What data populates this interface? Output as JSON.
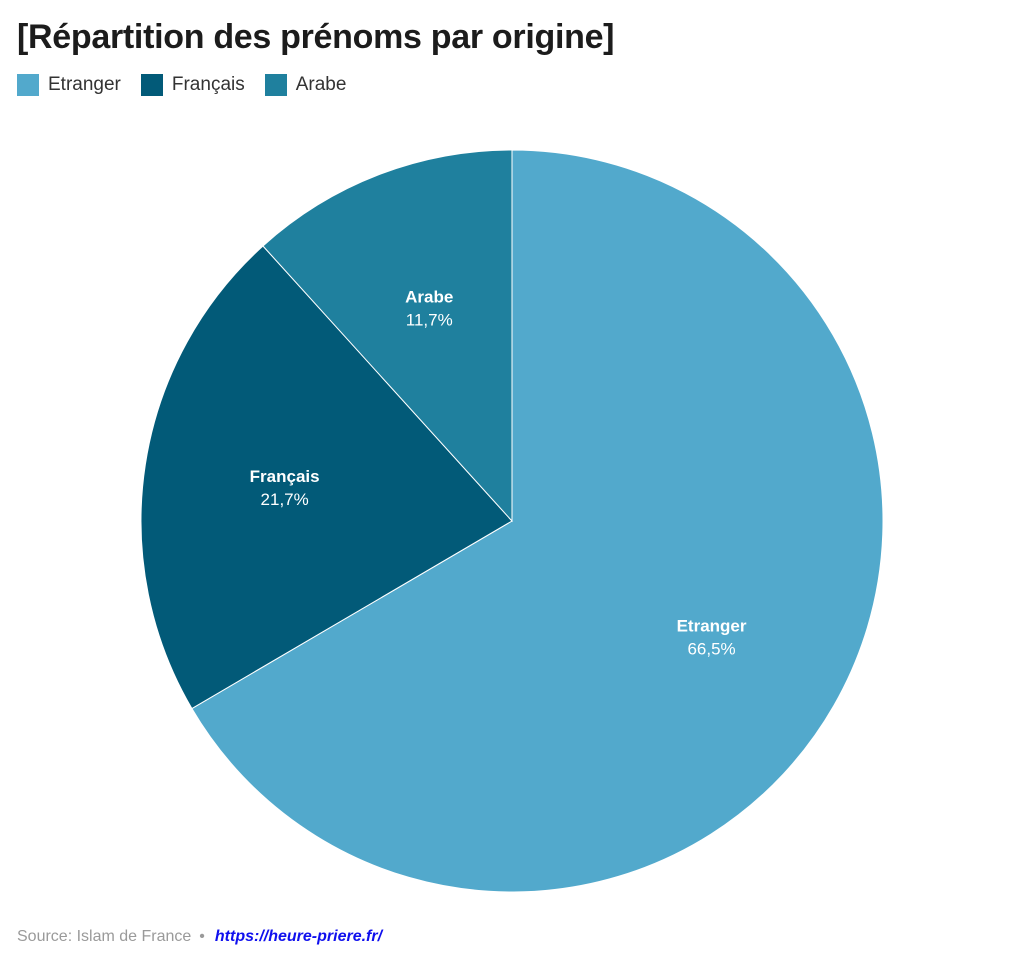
{
  "title": "[Répartition des prénoms par origine]",
  "legend": [
    {
      "label": "Etranger",
      "color": "#52a9cc"
    },
    {
      "label": "Français",
      "color": "#025a78"
    },
    {
      "label": "Arabe",
      "color": "#1f809e"
    }
  ],
  "chart_data": {
    "type": "pie",
    "title": "[Répartition des prénoms par origine]",
    "legend_position": "top-left",
    "start_angle": "12 o'clock",
    "direction": "clockwise",
    "slices": [
      {
        "label": "Etranger",
        "value": 66.5,
        "display": "66,5%",
        "color": "#52a9cc"
      },
      {
        "label": "Français",
        "value": 21.7,
        "display": "21,7%",
        "color": "#025a78"
      },
      {
        "label": "Arabe",
        "value": 11.7,
        "display": "11,7%",
        "color": "#1f809e"
      }
    ]
  },
  "footer": {
    "source": "Source: Islam de France",
    "separator": "•",
    "link": "https://heure-priere.fr/"
  }
}
